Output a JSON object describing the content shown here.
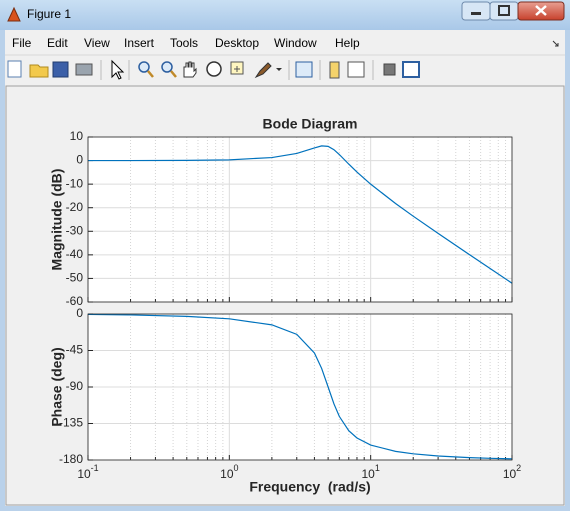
{
  "window": {
    "title": "Figure 1"
  },
  "menu": [
    "File",
    "Edit",
    "View",
    "Insert",
    "Tools",
    "Desktop",
    "Window",
    "Help"
  ],
  "chart_data": [
    {
      "type": "line",
      "title": "Bode Diagram",
      "ylabel": "Magnitude (dB)",
      "log_x": true,
      "grid": true,
      "color": "#0072bd",
      "x": [
        0.1,
        0.2,
        0.5,
        1,
        2,
        3,
        4,
        4.5,
        5,
        5.5,
        6,
        7,
        8,
        10,
        15,
        20,
        30,
        50,
        70,
        100
      ],
      "values": [
        0.0,
        0.01,
        0.08,
        0.31,
        1.28,
        3.02,
        5.38,
        6.22,
        6.02,
        4.6,
        2.57,
        -1.5,
        -4.88,
        -10.0,
        -18.21,
        -23.6,
        -30.91,
        -39.92,
        -45.81,
        -52.02
      ],
      "xlim": [
        0.1,
        100
      ],
      "xticks": [
        0.1,
        1,
        10,
        100
      ],
      "xminorticks": [
        0.2,
        0.3,
        0.4,
        0.5,
        0.6,
        0.7,
        0.8,
        0.9,
        2,
        3,
        4,
        5,
        6,
        7,
        8,
        9,
        20,
        30,
        40,
        50,
        60,
        70,
        80,
        90
      ],
      "ylim": [
        -60,
        10
      ],
      "yticks": [
        10,
        0,
        -10,
        -20,
        -30,
        -40,
        -50,
        -60
      ]
    },
    {
      "type": "line",
      "ylabel": "Phase (deg)",
      "xlabel": "Frequency  (rad/s)",
      "log_x": true,
      "grid": true,
      "color": "#0072bd",
      "x": [
        0.1,
        0.2,
        0.5,
        1,
        2,
        3,
        4,
        4.5,
        5,
        5.5,
        6,
        7,
        8,
        10,
        15,
        20,
        30,
        50,
        70,
        100
      ],
      "values": [
        -0.57,
        -1.15,
        -2.89,
        -5.95,
        -13.39,
        -25.11,
        -48.01,
        -67.11,
        -90,
        -110.9,
        -126.25,
        -143.9,
        -152.85,
        -161.57,
        -169.38,
        -172.41,
        -175.1,
        -177.11,
        -177.94,
        -178.56
      ],
      "xlim": [
        0.1,
        100
      ],
      "xticks": [
        {
          "value": 0.1,
          "label": "10",
          "exponent": "-1"
        },
        {
          "value": 1,
          "label": "10",
          "exponent": "0"
        },
        {
          "value": 10,
          "label": "10",
          "exponent": "1"
        },
        {
          "value": 100,
          "label": "10",
          "exponent": "2"
        }
      ],
      "xminorticks": [
        0.2,
        0.3,
        0.4,
        0.5,
        0.6,
        0.7,
        0.8,
        0.9,
        2,
        3,
        4,
        5,
        6,
        7,
        8,
        9,
        20,
        30,
        40,
        50,
        60,
        70,
        80,
        90
      ],
      "ylim": [
        -180,
        0
      ],
      "yticks": [
        0,
        -45,
        -90,
        -135,
        -180
      ]
    }
  ]
}
